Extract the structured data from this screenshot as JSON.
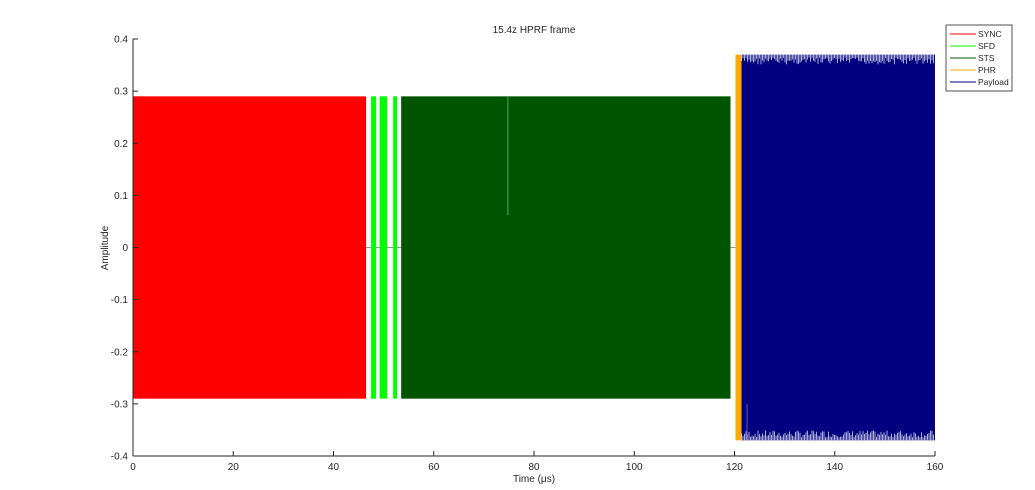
{
  "chart_data": {
    "type": "line",
    "title": "15.4z HPRF frame",
    "xlabel": "Time (μs)",
    "ylabel": "Amplitude",
    "xlim": [
      0,
      160
    ],
    "ylim": [
      -0.4,
      0.4
    ],
    "x_ticks": [
      "0",
      "20",
      "40",
      "60",
      "80",
      "100",
      "120",
      "140",
      "160"
    ],
    "y_ticks": [
      "0.4",
      "0.3",
      "0.2",
      "0.1",
      "0",
      "-0.1",
      "-0.2",
      "-0.3",
      "-0.4"
    ],
    "grid": false,
    "legend_position": "top-right outside",
    "series": [
      {
        "name": "SYNC",
        "color": "#ff0000",
        "segments": [
          {
            "x_start": 0,
            "x_end": 46.5,
            "amplitude": 0.29
          }
        ]
      },
      {
        "name": "SFD",
        "color": "#00ff00",
        "segments": [
          {
            "x_start": 47.5,
            "x_end": 48.5,
            "amplitude": 0.29
          },
          {
            "x_start": 49.2,
            "x_end": 50.7,
            "amplitude": 0.29
          },
          {
            "x_start": 51.9,
            "x_end": 52.7,
            "amplitude": 0.29
          }
        ]
      },
      {
        "name": "STS",
        "color": "#005500",
        "segments": [
          {
            "x_start": 53.5,
            "x_end": 119.2,
            "amplitude": 0.29
          }
        ]
      },
      {
        "name": "PHR",
        "color": "#ffaa00",
        "segments": [
          {
            "x_start": 120.2,
            "x_end": 121.4,
            "amplitude": 0.37
          }
        ]
      },
      {
        "name": "Payload",
        "color": "#000080",
        "segments": [
          {
            "x_start": 121.4,
            "x_end": 160,
            "amplitude": 0.37
          }
        ]
      }
    ],
    "idle_ranges": [
      {
        "x_start": 46.5,
        "x_end": 53.5
      },
      {
        "x_start": 119.2,
        "x_end": 120.2
      }
    ],
    "notable_features": [
      {
        "series": "STS",
        "x": 74.8,
        "y_min": 0.062
      },
      {
        "series": "Payload",
        "x": 122.5,
        "y_min": -0.3
      }
    ]
  }
}
